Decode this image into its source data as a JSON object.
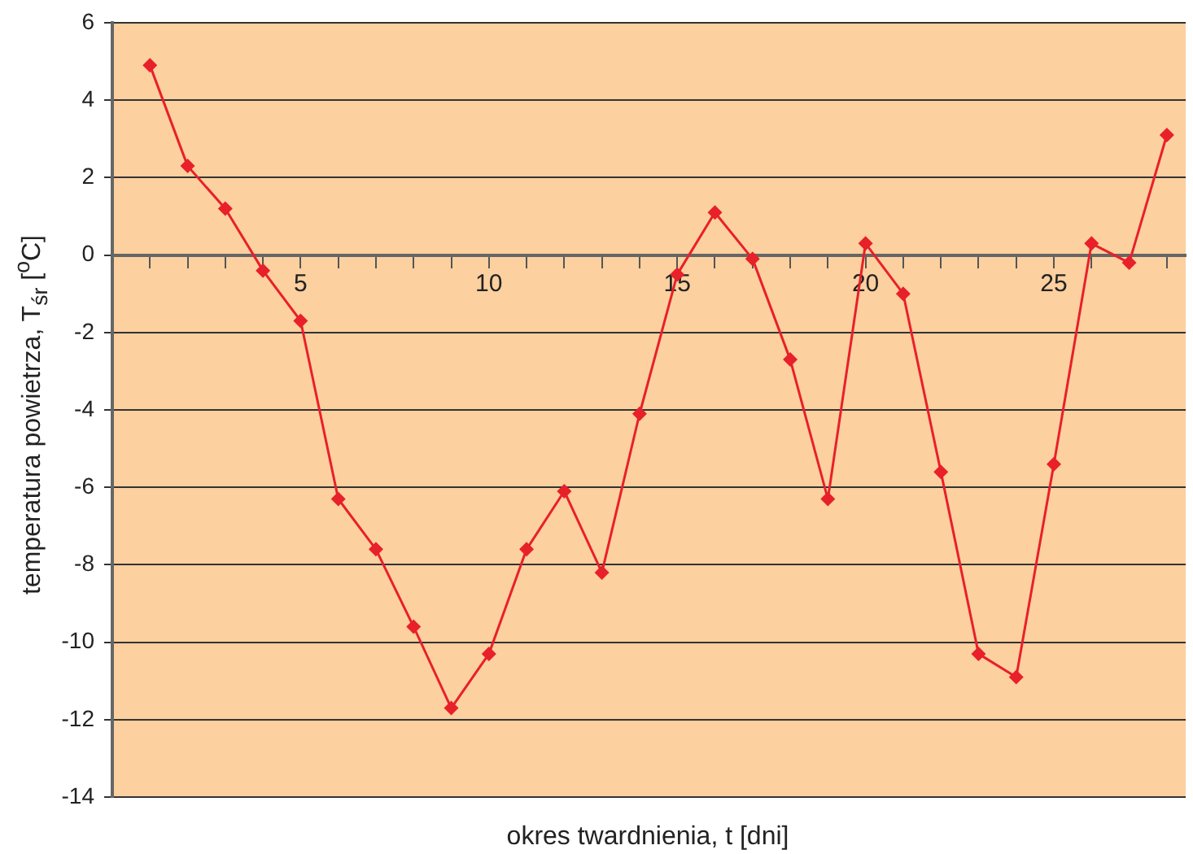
{
  "chart_data": {
    "type": "line",
    "xlabel": "okres twardnienia, t [dni]",
    "ylabel": "temperatura powietrza, T$_{śr}$ [$^{o}$C]",
    "x": [
      1,
      2,
      3,
      4,
      5,
      6,
      7,
      8,
      9,
      10,
      11,
      12,
      13,
      14,
      15,
      16,
      17,
      18,
      19,
      20,
      21,
      22,
      23,
      24,
      25,
      26,
      27,
      28
    ],
    "series": [
      {
        "color": "#e8202a",
        "values": [
          4.9,
          2.3,
          1.2,
          -0.4,
          -1.7,
          -6.3,
          -7.6,
          -9.6,
          -11.7,
          -10.3,
          -7.6,
          -6.1,
          -8.2,
          -4.1,
          -0.5,
          1.1,
          -0.1,
          -2.7,
          -6.3,
          0.3,
          -1.0,
          -5.6,
          -10.3,
          -10.9,
          -5.4,
          0.3,
          -0.2,
          3.1
        ]
      }
    ],
    "xlim": [
      0,
      28.5
    ],
    "xticks": [
      {
        "value": 1,
        "label": null
      },
      {
        "value": 2,
        "label": null
      },
      {
        "value": 3,
        "label": null
      },
      {
        "value": 4,
        "label": null
      },
      5,
      {
        "value": 6,
        "label": null
      },
      {
        "value": 7,
        "label": null
      },
      {
        "value": 8,
        "label": null
      },
      {
        "value": 9,
        "label": null
      },
      10,
      {
        "value": 11,
        "label": null
      },
      {
        "value": 12,
        "label": null
      },
      {
        "value": 13,
        "label": null
      },
      {
        "value": 14,
        "label": null
      },
      15,
      {
        "value": 16,
        "label": null
      },
      {
        "value": 17,
        "label": null
      },
      {
        "value": 18,
        "label": null
      },
      {
        "value": 19,
        "label": null
      },
      20,
      {
        "value": 21,
        "label": null
      },
      {
        "value": 22,
        "label": null
      },
      {
        "value": 23,
        "label": null
      },
      {
        "value": 24,
        "label": null
      },
      25,
      {
        "value": 26,
        "label": null
      },
      {
        "value": 27,
        "label": null
      },
      {
        "value": 28,
        "label": null
      }
    ],
    "ylim": [
      -14,
      6
    ],
    "yticks": [
      -14,
      -12,
      -10,
      -8,
      -6,
      -4,
      -2,
      0,
      2,
      4,
      6
    ],
    "grid": "y",
    "legend": false,
    "marker": "diamond",
    "line_style": "solid"
  }
}
